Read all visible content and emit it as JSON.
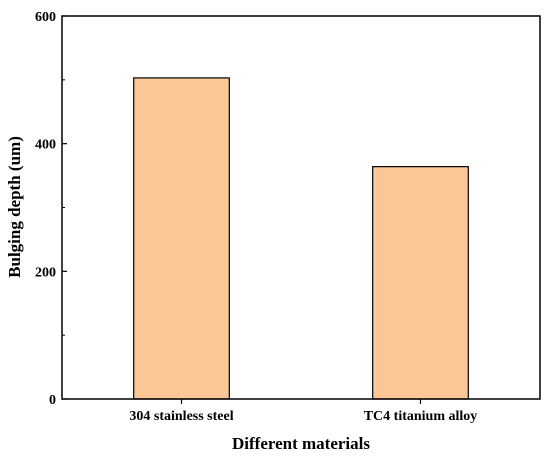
{
  "chart_data": {
    "type": "bar",
    "title": "",
    "xlabel": "Different materials",
    "ylabel": "Bulging depth (um)",
    "categories": [
      "304 stainless steel",
      "TC4 titanium alloy"
    ],
    "values": [
      503,
      364
    ],
    "ylim": [
      0,
      600
    ],
    "yticks": [
      0,
      200,
      400,
      600
    ],
    "ytick_labels": [
      "0",
      "200",
      "400",
      "600"
    ],
    "bar_color": "#FBC797",
    "bar_edge_color": "#000000",
    "grid": false,
    "legend": "none"
  }
}
